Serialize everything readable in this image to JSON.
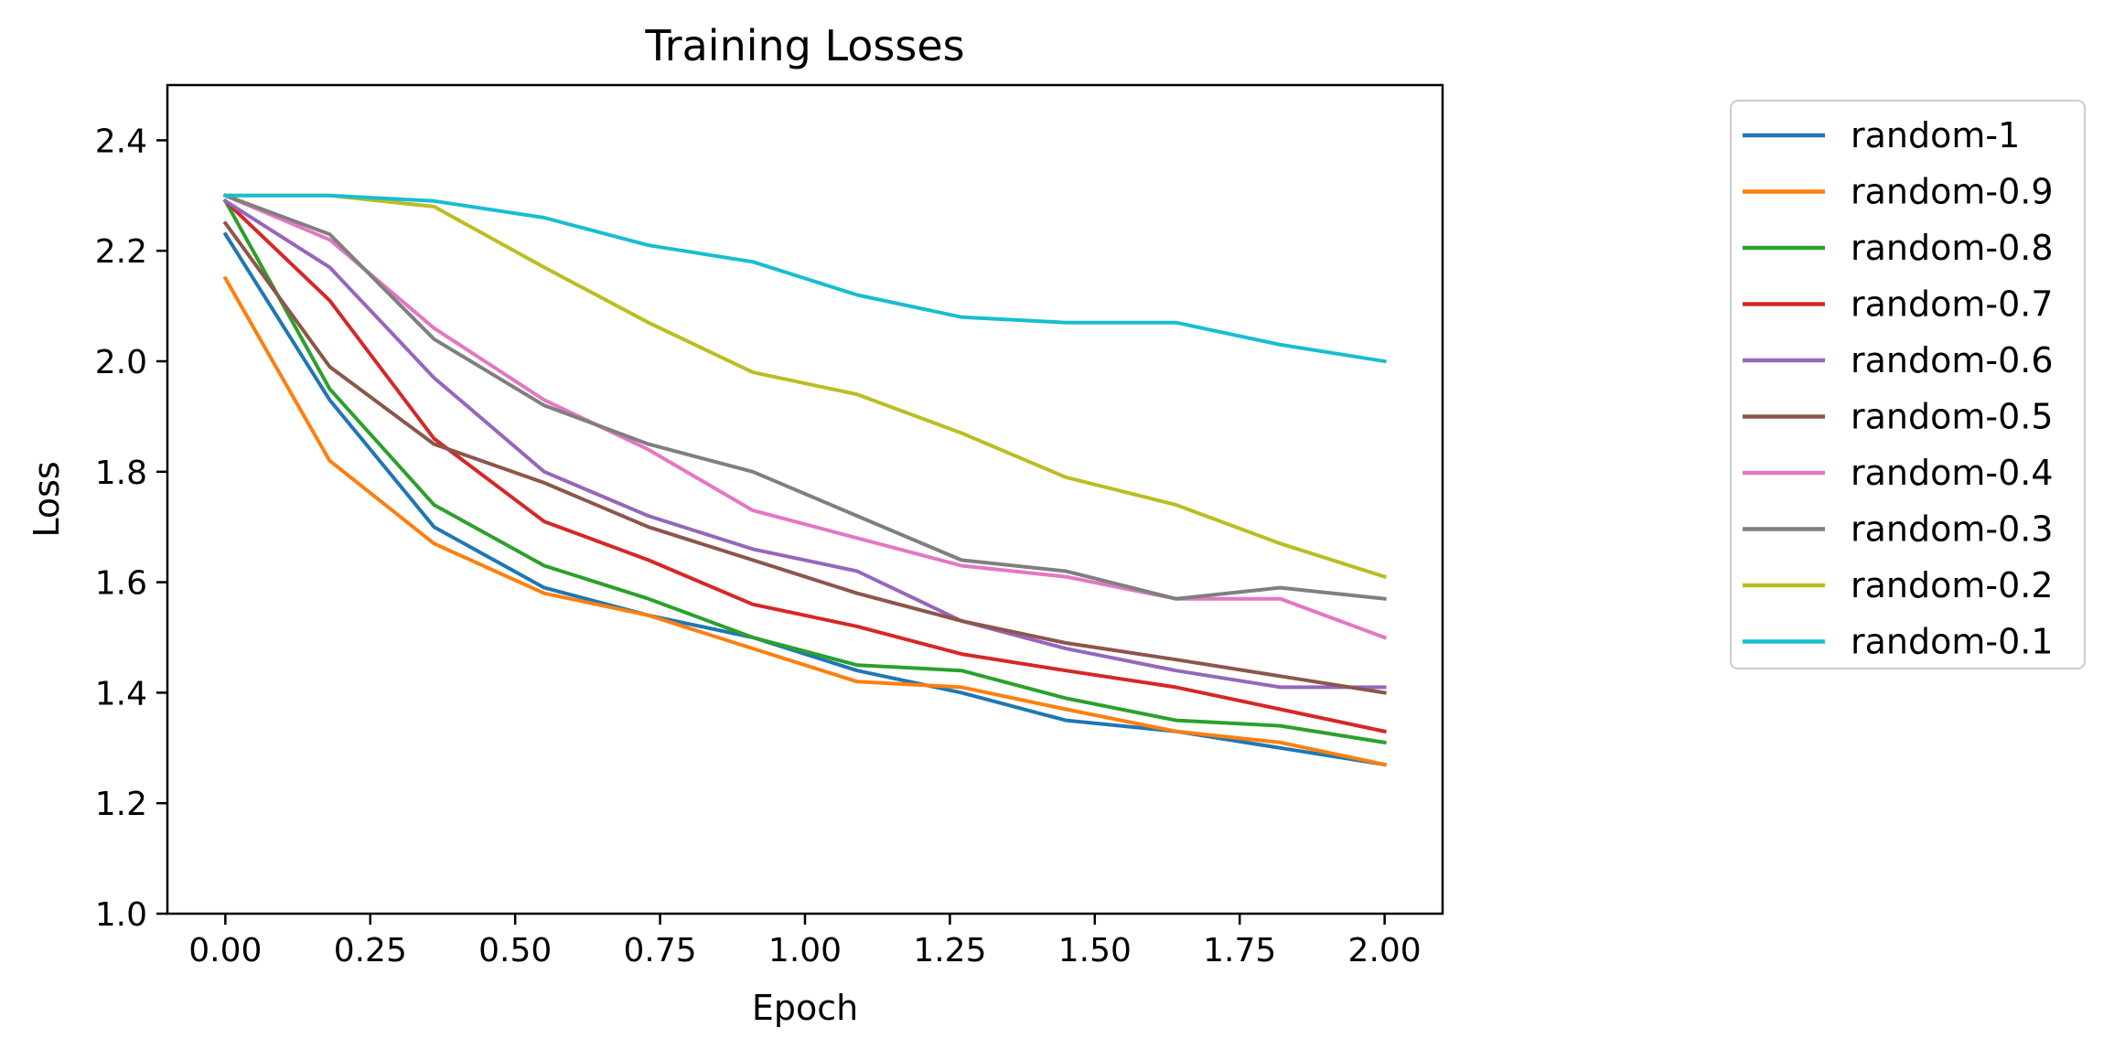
{
  "chart_data": {
    "type": "line",
    "title": "Training Losses",
    "xlabel": "Epoch",
    "ylabel": "Loss",
    "xlim": [
      -0.1,
      2.1
    ],
    "ylim": [
      1.0,
      2.5
    ],
    "x_ticks": [
      "0.00",
      "0.25",
      "0.50",
      "0.75",
      "1.00",
      "1.25",
      "1.50",
      "1.75",
      "2.00"
    ],
    "x_tick_values": [
      0.0,
      0.25,
      0.5,
      0.75,
      1.0,
      1.25,
      1.5,
      1.75,
      2.0
    ],
    "y_ticks": [
      "1.0",
      "1.2",
      "1.4",
      "1.6",
      "1.8",
      "2.0",
      "2.2",
      "2.4"
    ],
    "y_tick_values": [
      1.0,
      1.2,
      1.4,
      1.6,
      1.8,
      2.0,
      2.2,
      2.4
    ],
    "grid": false,
    "legend_position": "outside-right",
    "x": [
      0.0,
      0.18,
      0.36,
      0.55,
      0.73,
      0.91,
      1.09,
      1.27,
      1.45,
      1.64,
      1.82,
      2.0
    ],
    "series": [
      {
        "name": "random-1",
        "color": "#1f77b4",
        "values": [
          2.23,
          1.93,
          1.7,
          1.59,
          1.54,
          1.5,
          1.44,
          1.4,
          1.35,
          1.33,
          1.3,
          1.27
        ]
      },
      {
        "name": "random-0.9",
        "color": "#ff7f0e",
        "values": [
          2.15,
          1.82,
          1.67,
          1.58,
          1.54,
          1.48,
          1.42,
          1.41,
          1.37,
          1.33,
          1.31,
          1.27
        ]
      },
      {
        "name": "random-0.8",
        "color": "#2ca02c",
        "values": [
          2.29,
          1.95,
          1.74,
          1.63,
          1.57,
          1.5,
          1.45,
          1.44,
          1.39,
          1.35,
          1.34,
          1.31
        ]
      },
      {
        "name": "random-0.7",
        "color": "#d62728",
        "values": [
          2.29,
          2.11,
          1.86,
          1.71,
          1.64,
          1.56,
          1.52,
          1.47,
          1.44,
          1.41,
          1.37,
          1.33
        ]
      },
      {
        "name": "random-0.6",
        "color": "#9467bd",
        "values": [
          2.29,
          2.17,
          1.97,
          1.8,
          1.72,
          1.66,
          1.62,
          1.53,
          1.48,
          1.44,
          1.41,
          1.41
        ]
      },
      {
        "name": "random-0.5",
        "color": "#8c564b",
        "values": [
          2.25,
          1.99,
          1.85,
          1.78,
          1.7,
          1.64,
          1.58,
          1.53,
          1.49,
          1.46,
          1.43,
          1.4
        ]
      },
      {
        "name": "random-0.4",
        "color": "#e377c2",
        "values": [
          2.3,
          2.22,
          2.06,
          1.93,
          1.84,
          1.73,
          1.68,
          1.63,
          1.61,
          1.57,
          1.57,
          1.5
        ]
      },
      {
        "name": "random-0.3",
        "color": "#7f7f7f",
        "values": [
          2.3,
          2.23,
          2.04,
          1.92,
          1.85,
          1.8,
          1.72,
          1.64,
          1.62,
          1.57,
          1.59,
          1.57
        ]
      },
      {
        "name": "random-0.2",
        "color": "#bcbd22",
        "values": [
          2.3,
          2.3,
          2.28,
          2.17,
          2.07,
          1.98,
          1.94,
          1.87,
          1.79,
          1.74,
          1.67,
          1.61
        ]
      },
      {
        "name": "random-0.1",
        "color": "#17becf",
        "values": [
          2.3,
          2.3,
          2.29,
          2.26,
          2.21,
          2.18,
          2.12,
          2.08,
          2.07,
          2.07,
          2.03,
          2.0
        ]
      }
    ]
  }
}
